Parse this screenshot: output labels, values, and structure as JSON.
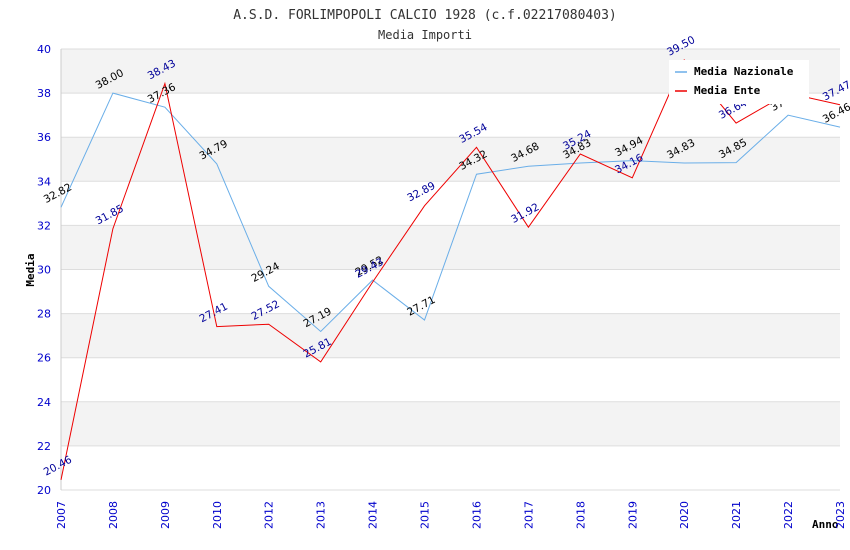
{
  "chart_data": {
    "type": "line",
    "title": "A.S.D. FORLIMPOPOLI CALCIO 1928 (c.f.02217080403)",
    "subtitle": "Media Importi",
    "xlabel": "Anno",
    "ylabel": "Media",
    "ylim": [
      20,
      40
    ],
    "yticks": [
      "20",
      "22",
      "24",
      "26",
      "28",
      "30",
      "32",
      "34",
      "36",
      "38",
      "40"
    ],
    "categories": [
      "2007",
      "2008",
      "2009",
      "2010",
      "2012",
      "2013",
      "2014",
      "2015",
      "2016",
      "2017",
      "2018",
      "2019",
      "2020",
      "2021",
      "2022",
      "2023"
    ],
    "series": [
      {
        "name": "Media Nazionale",
        "color": "#6aaee8",
        "label_color": "#000000",
        "values": [
          32.82,
          38.0,
          37.36,
          34.79,
          29.24,
          27.19,
          29.52,
          27.71,
          34.32,
          34.68,
          34.83,
          34.94,
          34.83,
          34.85,
          37.0,
          36.46
        ],
        "labels": [
          "32.82",
          "38.00",
          "37.36",
          "34.79",
          "29.24",
          "27.19",
          "29.52",
          "27.71",
          "34.32",
          "34.68",
          "34.83",
          "34.94",
          "34.83",
          "34.85",
          "37",
          "36.46"
        ]
      },
      {
        "name": "Media Ente",
        "color": "#ee0000",
        "label_color": "#000099",
        "values": [
          20.46,
          31.85,
          38.43,
          27.41,
          27.52,
          25.81,
          29.43,
          32.89,
          35.54,
          31.92,
          35.24,
          34.16,
          39.5,
          36.64,
          38.0,
          37.47
        ],
        "labels": [
          "20.46",
          "31.85",
          "38.43",
          "27.41",
          "27.52",
          "25.81",
          "29.43",
          "32.89",
          "35.54",
          "31.92",
          "35.24",
          "34.16",
          "39.50",
          "36.64",
          "",
          "37.47"
        ]
      }
    ],
    "legend_position": "top-right",
    "grid": true
  }
}
